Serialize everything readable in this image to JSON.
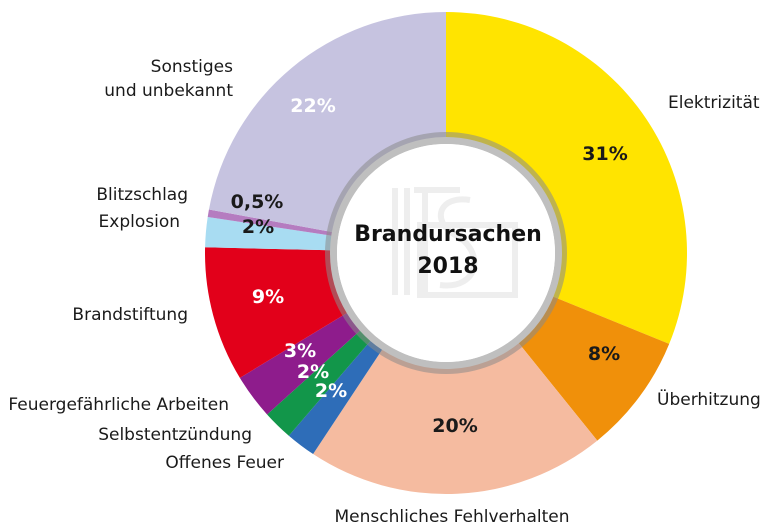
{
  "chart_data": {
    "type": "pie",
    "variant": "donut",
    "title": "Brandursachen",
    "subtitle": "2018",
    "watermark": "IFS",
    "start": "12 o'clock",
    "direction": "clockwise",
    "slices": [
      {
        "label": "Elektrizität",
        "value": 31,
        "value_label": "31%",
        "color": "#FFE400",
        "text_color": "#1a1a1a"
      },
      {
        "label": "Überhitzung",
        "value": 8,
        "value_label": "8%",
        "color": "#F0900A",
        "text_color": "#1a1a1a"
      },
      {
        "label": "Menschliches Fehlverhalten",
        "value": 20,
        "value_label": "20%",
        "color": "#F5BBA0",
        "text_color": "#1a1a1a"
      },
      {
        "label": "Offenes Feuer",
        "value": 2,
        "value_label": "2%",
        "color": "#2E6DB8",
        "text_color": "#ffffff"
      },
      {
        "label": "Selbstentzündung",
        "value": 2,
        "value_label": "2%",
        "color": "#12964A",
        "text_color": "#ffffff"
      },
      {
        "label": "Feuergefährliche Arbeiten",
        "value": 3,
        "value_label": "3%",
        "color": "#8E1C8C",
        "text_color": "#ffffff"
      },
      {
        "label": "Brandstiftung",
        "value": 9,
        "value_label": "9%",
        "color": "#E2001A",
        "text_color": "#ffffff"
      },
      {
        "label": "Explosion",
        "value": 2,
        "value_label": "2%",
        "color": "#A8DCF2",
        "text_color": "#1a1a1a"
      },
      {
        "label": "Blitzschlag",
        "value": 0.5,
        "value_label": "0,5%",
        "color": "#B57CC0",
        "text_color": "#1a1a1a"
      },
      {
        "label": "Sonstiges und unbekannt",
        "value": 22,
        "value_label": "22%",
        "color": "#C6C3E0",
        "text_color": "#ffffff",
        "label_lines": [
          "Sonstiges",
          "und unbekannt"
        ]
      }
    ]
  }
}
